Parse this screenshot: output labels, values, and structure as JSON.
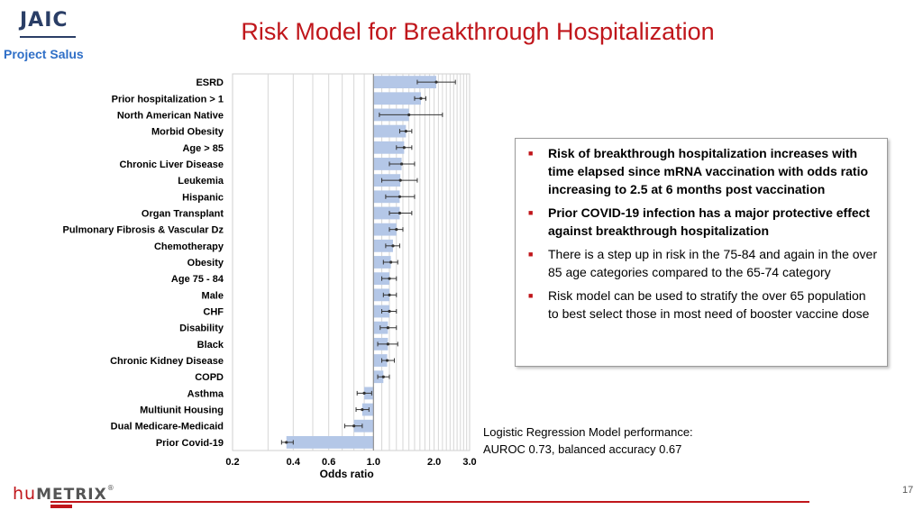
{
  "header": {
    "logo_text": "JAIC",
    "project_label": "Project Salus",
    "title": "Risk Model for Breakthrough Hospitalization"
  },
  "chart_data": {
    "type": "bar",
    "orientation": "horizontal",
    "xscale": "log",
    "xlabel": "Odds ratio",
    "xlim": [
      0.2,
      3.0
    ],
    "xticks": [
      0.2,
      0.4,
      0.6,
      1.0,
      2.0,
      3.0
    ],
    "xtick_labels": [
      "0.2",
      "0.4",
      "0.6",
      "1.0",
      "2.0",
      "3.0"
    ],
    "baseline": 1.0,
    "bar_color": "#b4c7e7",
    "categories": [
      "ESRD",
      "Prior hospitalization > 1",
      "North American Native",
      "Morbid Obesity",
      "Age > 85",
      "Chronic Liver Disease",
      "Leukemia",
      "Hispanic",
      "Organ Transplant",
      "Pulmonary Fibrosis & Vascular Dz",
      "Chemotherapy",
      "Obesity",
      "Age 75 - 84",
      "Male",
      "CHF",
      "Disability",
      "Black",
      "Chronic Kidney Disease",
      "COPD",
      "Asthma",
      "Multiunit Housing",
      "Dual Medicare-Medicaid",
      "Prior Covid-19"
    ],
    "values": [
      2.05,
      1.72,
      1.5,
      1.45,
      1.42,
      1.38,
      1.36,
      1.35,
      1.35,
      1.3,
      1.25,
      1.22,
      1.2,
      1.2,
      1.2,
      1.18,
      1.18,
      1.17,
      1.12,
      0.9,
      0.88,
      0.8,
      0.37
    ],
    "ci_low": [
      1.65,
      1.6,
      1.07,
      1.35,
      1.3,
      1.2,
      1.1,
      1.15,
      1.2,
      1.2,
      1.15,
      1.12,
      1.1,
      1.12,
      1.1,
      1.08,
      1.05,
      1.1,
      1.05,
      0.83,
      0.82,
      0.72,
      0.35
    ],
    "ci_high": [
      2.55,
      1.82,
      2.2,
      1.55,
      1.55,
      1.6,
      1.65,
      1.6,
      1.55,
      1.4,
      1.35,
      1.32,
      1.3,
      1.3,
      1.3,
      1.3,
      1.32,
      1.27,
      1.2,
      0.98,
      0.95,
      0.88,
      0.4
    ]
  },
  "bullets": [
    {
      "text": "Risk of breakthrough hospitalization increases with time elapsed since mRNA vaccination with odds ratio increasing to 2.5 at 6 months post vaccination",
      "bold": true
    },
    {
      "text": "Prior COVID-19 infection has a major protective effect against breakthrough hospitalization",
      "bold": true
    },
    {
      "text": "There is a step up in risk in the 75-84 and again in the over 85 age categories compared to the 65-74 category",
      "bold": false
    },
    {
      "text": "Risk model can be used to stratify the over 65 population to best select those in most need of booster vaccine dose",
      "bold": false
    }
  ],
  "performance": {
    "line1": "Logistic Regression Model performance:",
    "line2": "AUROC 0.73, balanced accuracy 0.67"
  },
  "footer": {
    "brand_hu": "hu",
    "brand_metrix": "METRIX",
    "brand_reg": "®",
    "page_number": "17"
  },
  "colors": {
    "title": "#c0161b",
    "project_label": "#2f6fc7",
    "bars": "#b4c7e7",
    "bullet_marker": "#c0161b"
  }
}
